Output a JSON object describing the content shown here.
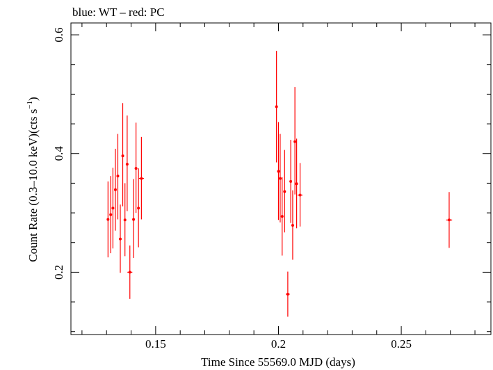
{
  "chart_data": {
    "type": "scatter",
    "title": "blue: WT – red: PC",
    "xlabel": "Time Since 55569.0 MJD (days)",
    "ylabel_main": "Count Rate (0.3–10.0 keV)(cts s",
    "ylabel_sup": "−1",
    "ylabel_close": ")",
    "xlim": [
      0.1155,
      0.2865
    ],
    "ylim": [
      0.095,
      0.62
    ],
    "x_ticks": [
      0.15,
      0.2,
      0.25
    ],
    "x_tick_labels": [
      "0.15",
      "0.2",
      "0.25"
    ],
    "y_ticks": [
      0.2,
      0.4,
      0.6
    ],
    "y_tick_labels": [
      "0.2",
      "0.4",
      "0.6"
    ],
    "grid": false,
    "series": [
      {
        "color": "#ff0000",
        "points": [
          {
            "x": 0.1306,
            "y": 0.289,
            "xerr": 0.0003,
            "ylo": 0.225,
            "yhi": 0.353
          },
          {
            "x": 0.1317,
            "y": 0.297,
            "xerr": 0.0003,
            "ylo": 0.232,
            "yhi": 0.362
          },
          {
            "x": 0.1326,
            "y": 0.308,
            "xerr": 0.0003,
            "ylo": 0.24,
            "yhi": 0.376
          },
          {
            "x": 0.1336,
            "y": 0.339,
            "xerr": 0.0003,
            "ylo": 0.27,
            "yhi": 0.408
          },
          {
            "x": 0.1346,
            "y": 0.362,
            "xerr": 0.0003,
            "ylo": 0.289,
            "yhi": 0.433
          },
          {
            "x": 0.1356,
            "y": 0.256,
            "xerr": 0.0003,
            "ylo": 0.199,
            "yhi": 0.314
          },
          {
            "x": 0.1366,
            "y": 0.396,
            "xerr": 0.0003,
            "ylo": 0.311,
            "yhi": 0.485
          },
          {
            "x": 0.1375,
            "y": 0.288,
            "xerr": 0.0003,
            "ylo": 0.227,
            "yhi": 0.35
          },
          {
            "x": 0.1384,
            "y": 0.382,
            "xerr": 0.0003,
            "ylo": 0.303,
            "yhi": 0.464
          },
          {
            "x": 0.1395,
            "y": 0.2,
            "xerr": 0.001,
            "ylo": 0.155,
            "yhi": 0.245
          },
          {
            "x": 0.141,
            "y": 0.289,
            "xerr": 0.0003,
            "ylo": 0.224,
            "yhi": 0.357
          },
          {
            "x": 0.142,
            "y": 0.375,
            "xerr": 0.0003,
            "ylo": 0.3,
            "yhi": 0.452
          },
          {
            "x": 0.143,
            "y": 0.308,
            "xerr": 0.0003,
            "ylo": 0.242,
            "yhi": 0.375
          },
          {
            "x": 0.1442,
            "y": 0.358,
            "xerr": 0.001,
            "ylo": 0.289,
            "yhi": 0.428
          },
          {
            "x": 0.1992,
            "y": 0.479,
            "xerr": 0.0002,
            "ylo": 0.385,
            "yhi": 0.573
          },
          {
            "x": 0.2,
            "y": 0.37,
            "xerr": 0.0002,
            "ylo": 0.288,
            "yhi": 0.453
          },
          {
            "x": 0.2007,
            "y": 0.358,
            "xerr": 0.0002,
            "ylo": 0.284,
            "yhi": 0.433
          },
          {
            "x": 0.2015,
            "y": 0.294,
            "xerr": 0.0002,
            "ylo": 0.228,
            "yhi": 0.36
          },
          {
            "x": 0.2025,
            "y": 0.336,
            "xerr": 0.0002,
            "ylo": 0.267,
            "yhi": 0.406
          },
          {
            "x": 0.2038,
            "y": 0.163,
            "xerr": 0.0008,
            "ylo": 0.125,
            "yhi": 0.201
          },
          {
            "x": 0.205,
            "y": 0.353,
            "xerr": 0.0002,
            "ylo": 0.283,
            "yhi": 0.423
          },
          {
            "x": 0.2058,
            "y": 0.279,
            "xerr": 0.0002,
            "ylo": 0.221,
            "yhi": 0.338
          },
          {
            "x": 0.2067,
            "y": 0.42,
            "xerr": 0.0002,
            "ylo": 0.331,
            "yhi": 0.512
          },
          {
            "x": 0.2074,
            "y": 0.349,
            "xerr": 0.0002,
            "ylo": 0.274,
            "yhi": 0.425
          },
          {
            "x": 0.2088,
            "y": 0.33,
            "xerr": 0.001,
            "ylo": 0.277,
            "yhi": 0.384
          },
          {
            "x": 0.2695,
            "y": 0.288,
            "xerr": 0.0012,
            "ylo": 0.241,
            "yhi": 0.335
          }
        ]
      }
    ]
  }
}
